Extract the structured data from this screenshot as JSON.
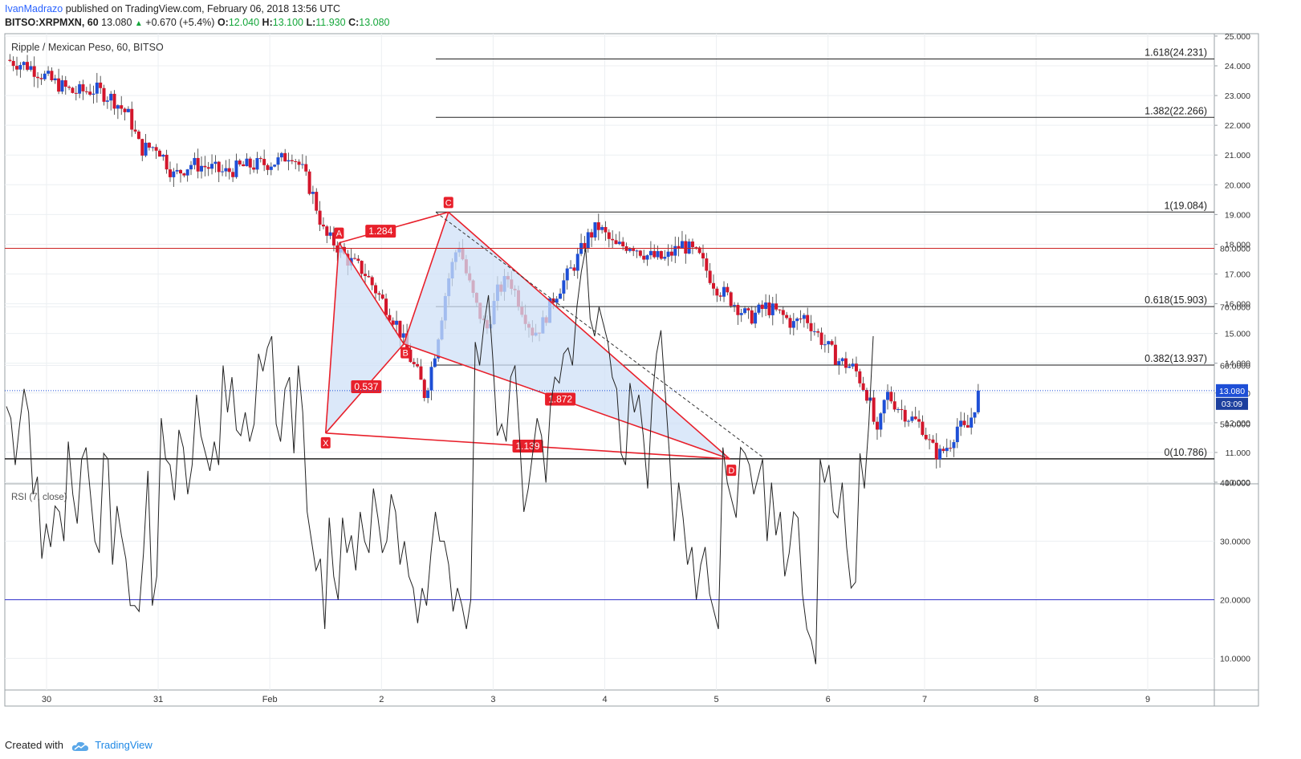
{
  "header": {
    "author": "IvanMadrazo",
    "published": "published on TradingView.com, February 06, 2018 13:56 UTC",
    "symbol": "BITSO:XRPMXN, 60",
    "last": "13.080",
    "change_arrow": "▲",
    "change": "+0.670 (+5.4%)",
    "o_label": "O:",
    "o_value": "12.040",
    "h_label": "H:",
    "h_value": "13.100",
    "l_label": "L:",
    "l_value": "11.930",
    "c_label": "C:",
    "c_value": "13.080"
  },
  "footer": {
    "created_with": "Created with",
    "brand": "TradingView",
    "logo_icon": "cloud-icon"
  },
  "colors": {
    "up": "#1e4fd6",
    "down": "#d3162b",
    "pattern": "#e8202b",
    "fill": "#cfe0f7",
    "rsi_upper": "#cc2222",
    "rsi_lower": "#3333cc",
    "price_line": "#1e4fd6"
  },
  "chart_data": [
    {
      "type": "candlestick",
      "title": "Ripple / Mexican Peso, 60, BITSO",
      "ylim": [
        10.0,
        25.0
      ],
      "y_ticks": [
        "25.000",
        "24.000",
        "23.000",
        "22.000",
        "21.000",
        "20.000",
        "19.000",
        "18.000",
        "17.000",
        "16.000",
        "15.000",
        "14.000",
        "13.000",
        "12.000",
        "11.000",
        "10.000"
      ],
      "x_ticks": [
        "30",
        "31",
        "Feb",
        "2",
        "3",
        "4",
        "5",
        "6",
        "7",
        "8",
        "9"
      ],
      "grid": true,
      "last_price": "13.080",
      "countdown": "03:09",
      "fib_levels": [
        {
          "label": "1.618(24.231)",
          "value": 24.231
        },
        {
          "label": "1.382(22.266)",
          "value": 22.266
        },
        {
          "label": "1(19.084)",
          "value": 19.084
        },
        {
          "label": "0.618(15.903)",
          "value": 15.903
        },
        {
          "label": "0.382(13.937)",
          "value": 13.937
        },
        {
          "label": "0(10.786)",
          "value": 10.786
        }
      ],
      "harmonic_pattern": {
        "points": [
          {
            "name": "X",
            "x": 2.5,
            "y": 11.65
          },
          {
            "name": "A",
            "x": 2.62,
            "y": 18.05
          },
          {
            "name": "B",
            "x": 3.2,
            "y": 14.65
          },
          {
            "name": "C",
            "x": 3.6,
            "y": 19.08
          },
          {
            "name": "D",
            "x": 6.12,
            "y": 10.78
          }
        ],
        "ratios": [
          {
            "label": "1.284",
            "between": "A-C"
          },
          {
            "label": "0.537",
            "between": "X-B"
          },
          {
            "label": "1.872",
            "between": "B-D"
          },
          {
            "label": "1.139",
            "between": "X-D"
          }
        ]
      },
      "close_path": [
        {
          "x": 0.0,
          "y": 24.2
        },
        {
          "x": 0.2,
          "y": 24.0
        },
        {
          "x": 0.4,
          "y": 23.5
        },
        {
          "x": 0.6,
          "y": 23.1
        },
        {
          "x": 0.8,
          "y": 23.2
        },
        {
          "x": 0.95,
          "y": 22.9
        },
        {
          "x": 1.1,
          "y": 22.3
        },
        {
          "x": 1.2,
          "y": 21.2
        },
        {
          "x": 1.35,
          "y": 21.3
        },
        {
          "x": 1.5,
          "y": 20.3
        },
        {
          "x": 1.65,
          "y": 20.7
        },
        {
          "x": 1.8,
          "y": 20.6
        },
        {
          "x": 1.95,
          "y": 20.4
        },
        {
          "x": 2.1,
          "y": 20.6
        },
        {
          "x": 2.3,
          "y": 20.7
        },
        {
          "x": 2.45,
          "y": 20.8
        },
        {
          "x": 2.55,
          "y": 21.1
        },
        {
          "x": 2.65,
          "y": 20.5
        },
        {
          "x": 2.75,
          "y": 19.6
        },
        {
          "x": 2.85,
          "y": 18.3
        },
        {
          "x": 2.95,
          "y": 18.0
        },
        {
          "x": 3.05,
          "y": 17.5
        },
        {
          "x": 3.2,
          "y": 17.1
        },
        {
          "x": 3.35,
          "y": 16.2
        },
        {
          "x": 3.5,
          "y": 15.3
        },
        {
          "x": 3.6,
          "y": 14.3
        },
        {
          "x": 3.7,
          "y": 13.5
        },
        {
          "x": 3.75,
          "y": 12.9
        },
        {
          "x": 3.85,
          "y": 14.6
        },
        {
          "x": 3.95,
          "y": 16.7
        },
        {
          "x": 4.05,
          "y": 18.1
        },
        {
          "x": 4.12,
          "y": 17.0
        },
        {
          "x": 4.2,
          "y": 16.0
        },
        {
          "x": 4.3,
          "y": 15.1
        },
        {
          "x": 4.4,
          "y": 16.4
        },
        {
          "x": 4.5,
          "y": 16.9
        },
        {
          "x": 4.6,
          "y": 16.0
        },
        {
          "x": 4.72,
          "y": 15.0
        },
        {
          "x": 4.8,
          "y": 15.3
        },
        {
          "x": 4.9,
          "y": 16.2
        },
        {
          "x": 5.0,
          "y": 16.8
        },
        {
          "x": 5.1,
          "y": 17.4
        },
        {
          "x": 5.2,
          "y": 18.2
        },
        {
          "x": 5.3,
          "y": 18.6
        },
        {
          "x": 5.45,
          "y": 17.9
        },
        {
          "x": 5.6,
          "y": 18.0
        },
        {
          "x": 5.75,
          "y": 17.6
        },
        {
          "x": 5.9,
          "y": 17.5
        },
        {
          "x": 6.05,
          "y": 18.0
        },
        {
          "x": 6.2,
          "y": 17.6
        },
        {
          "x": 6.35,
          "y": 16.6
        },
        {
          "x": 6.5,
          "y": 16.1
        },
        {
          "x": 6.65,
          "y": 15.5
        },
        {
          "x": 6.8,
          "y": 15.9
        },
        {
          "x": 6.95,
          "y": 15.6
        },
        {
          "x": 7.05,
          "y": 15.3
        },
        {
          "x": 7.15,
          "y": 15.6
        },
        {
          "x": 7.3,
          "y": 14.8
        },
        {
          "x": 7.45,
          "y": 14.1
        },
        {
          "x": 7.6,
          "y": 13.8
        },
        {
          "x": 7.72,
          "y": 12.9
        },
        {
          "x": 7.8,
          "y": 11.5
        },
        {
          "x": 7.88,
          "y": 13.0
        },
        {
          "x": 7.97,
          "y": 12.6
        },
        {
          "x": 8.08,
          "y": 12.2
        },
        {
          "x": 8.2,
          "y": 11.9
        },
        {
          "x": 8.28,
          "y": 11.2
        },
        {
          "x": 8.35,
          "y": 10.9
        },
        {
          "x": 8.45,
          "y": 11.3
        },
        {
          "x": 8.52,
          "y": 11.9
        },
        {
          "x": 8.6,
          "y": 11.7
        },
        {
          "x": 8.66,
          "y": 12.4
        },
        {
          "x": 8.71,
          "y": 13.08
        }
      ]
    },
    {
      "type": "line",
      "title": "RSI (7, close)",
      "ylim": [
        5,
        82
      ],
      "y_ticks": [
        "80.0000",
        "70.0000",
        "60.0000",
        "50.0000",
        "40.0000",
        "30.0000",
        "20.0000",
        "10.0000"
      ],
      "levels": [
        80,
        20
      ],
      "series": [
        {
          "values": [
            53,
            51,
            43,
            50,
            56,
            52,
            38,
            41,
            27,
            33,
            29,
            36,
            35,
            30,
            47,
            38,
            33,
            44,
            46,
            38,
            30,
            28,
            45,
            44,
            26,
            36,
            31,
            27,
            19,
            19,
            18,
            28,
            42,
            19,
            24,
            51,
            44,
            43,
            37,
            49,
            46,
            38,
            43,
            55,
            48,
            45,
            42,
            47,
            43,
            60,
            52,
            58,
            49,
            48,
            52,
            47,
            50,
            62,
            59,
            63,
            65,
            50,
            47,
            56,
            58,
            45,
            60,
            52,
            35,
            30,
            25,
            27,
            15,
            34,
            24,
            20,
            34,
            28,
            31,
            25,
            35,
            30,
            28,
            39,
            34,
            28,
            30,
            38,
            35,
            26,
            30,
            24,
            22,
            16,
            22,
            19,
            28,
            35,
            30,
            30,
            26,
            18,
            22,
            19,
            15,
            20,
            64,
            60,
            67,
            72,
            61,
            48,
            50,
            47,
            58,
            60,
            48,
            35,
            39,
            45,
            51,
            48,
            40,
            53,
            58,
            57,
            62,
            63,
            60,
            70,
            76,
            80,
            68,
            65,
            70,
            67,
            64,
            58,
            56,
            45,
            43,
            57,
            52,
            55,
            48,
            39,
            54,
            62,
            66,
            55,
            44,
            30,
            40,
            34,
            26,
            29,
            20,
            26,
            29,
            21,
            18,
            15,
            46,
            40,
            37,
            34,
            46,
            45,
            43,
            38,
            41,
            44,
            30,
            40,
            31,
            35,
            24,
            28,
            35,
            34,
            21,
            15,
            13,
            9,
            44,
            40,
            43,
            35,
            34,
            40,
            29,
            22,
            23,
            45,
            39,
            50,
            65
          ]
        }
      ]
    }
  ],
  "x_ticks_axis": [
    "30",
    "31",
    "Feb",
    "2",
    "3",
    "4",
    "5",
    "6",
    "7",
    "8",
    "9"
  ]
}
